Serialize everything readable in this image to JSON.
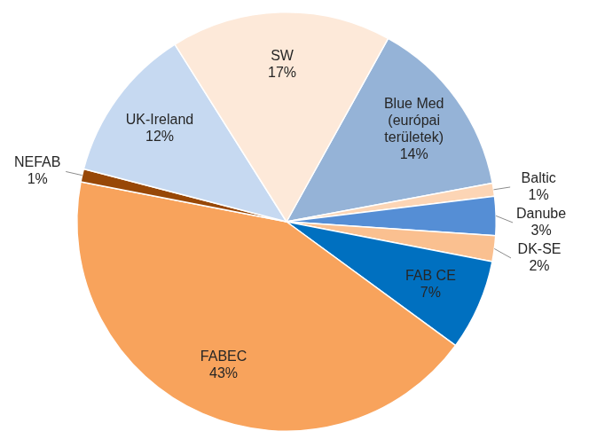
{
  "chart_data": {
    "type": "pie",
    "categories": [
      "Blue Med\n(európai\nterületek)",
      "Baltic",
      "Danube",
      "DK-SE",
      "FAB CE",
      "FABEC",
      "NEFAB",
      "UK-Ireland",
      "SW"
    ],
    "values": [
      14,
      1,
      3,
      2,
      7,
      43,
      1,
      12,
      17
    ],
    "value_labels": [
      "14%",
      "1%",
      "3%",
      "2%",
      "7%",
      "43%",
      "1%",
      "12%",
      "17%"
    ],
    "colors": [
      "#95b3d7",
      "#fcd5b5",
      "#558ed5",
      "#fac090",
      "#0070c0",
      "#f8a35c",
      "#984807",
      "#c6d9f1",
      "#fde9d9"
    ],
    "data_labels": true
  }
}
